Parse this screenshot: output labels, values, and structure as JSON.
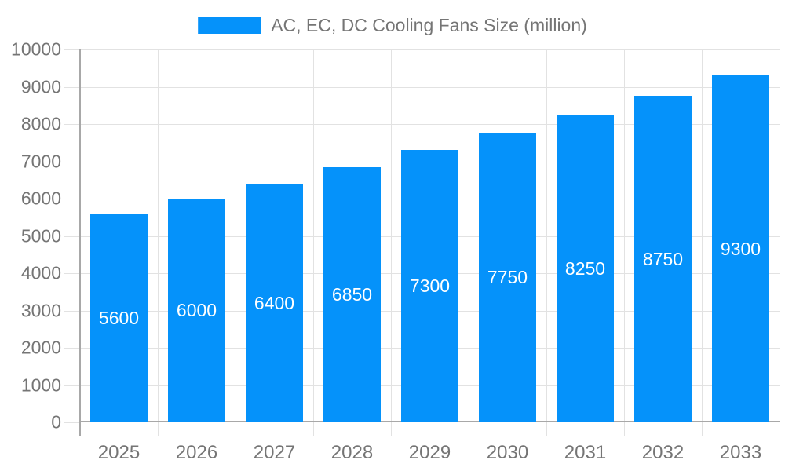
{
  "chart_data": {
    "type": "bar",
    "title": "",
    "legend": "AC, EC, DC Cooling Fans Size (million)",
    "legend_position": "top-center",
    "categories": [
      "2025",
      "2026",
      "2027",
      "2028",
      "2029",
      "2030",
      "2031",
      "2032",
      "2033"
    ],
    "values": [
      5600,
      6000,
      6400,
      6850,
      7300,
      7750,
      8250,
      8750,
      9300
    ],
    "value_labels": [
      "5600",
      "6000",
      "6400",
      "6850",
      "7300",
      "7750",
      "8250",
      "8750",
      "9300"
    ],
    "value_labels_inside_bars": true,
    "xlabel": "",
    "ylabel": "",
    "ylim": [
      0,
      10000
    ],
    "ytick_step": 1000,
    "ytick_labels": [
      "0",
      "1000",
      "2000",
      "3000",
      "4000",
      "5000",
      "6000",
      "7000",
      "8000",
      "9000",
      "10000"
    ],
    "grid": true,
    "colors": {
      "bar": "#0592fa",
      "grid": "#e2e2e2",
      "axis": "#a8a8a8",
      "axis_text": "#757575",
      "bar_label_text": "#ffffff",
      "background": "#ffffff"
    }
  }
}
